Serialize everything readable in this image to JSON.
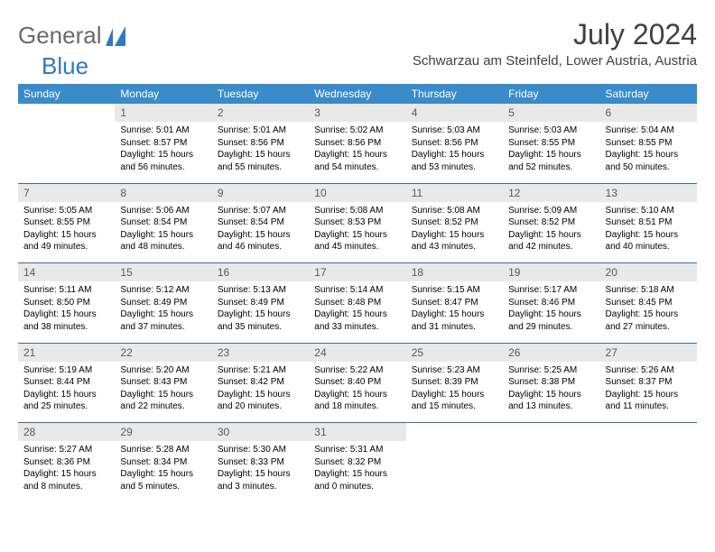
{
  "brand": {
    "part1": "General",
    "part2": "Blue"
  },
  "title": "July 2024",
  "location": "Schwarzau am Steinfeld, Lower Austria, Austria",
  "colors": {
    "header_bg": "#3a8bc9",
    "header_text": "#ffffff",
    "daynum_bg": "#e9e9e9",
    "daynum_text": "#5a5a5a",
    "week_border": "#2e6fa5",
    "page_bg": "#ffffff",
    "brand_gray": "#6a6a6a",
    "brand_blue": "#2f7ac0",
    "title_color": "#404040"
  },
  "dayHeaders": [
    "Sunday",
    "Monday",
    "Tuesday",
    "Wednesday",
    "Thursday",
    "Friday",
    "Saturday"
  ],
  "weeks": [
    [
      null,
      {
        "num": "1",
        "sunrise": "5:01 AM",
        "sunset": "8:57 PM",
        "daylight": "15 hours and 56 minutes."
      },
      {
        "num": "2",
        "sunrise": "5:01 AM",
        "sunset": "8:56 PM",
        "daylight": "15 hours and 55 minutes."
      },
      {
        "num": "3",
        "sunrise": "5:02 AM",
        "sunset": "8:56 PM",
        "daylight": "15 hours and 54 minutes."
      },
      {
        "num": "4",
        "sunrise": "5:03 AM",
        "sunset": "8:56 PM",
        "daylight": "15 hours and 53 minutes."
      },
      {
        "num": "5",
        "sunrise": "5:03 AM",
        "sunset": "8:55 PM",
        "daylight": "15 hours and 52 minutes."
      },
      {
        "num": "6",
        "sunrise": "5:04 AM",
        "sunset": "8:55 PM",
        "daylight": "15 hours and 50 minutes."
      }
    ],
    [
      {
        "num": "7",
        "sunrise": "5:05 AM",
        "sunset": "8:55 PM",
        "daylight": "15 hours and 49 minutes."
      },
      {
        "num": "8",
        "sunrise": "5:06 AM",
        "sunset": "8:54 PM",
        "daylight": "15 hours and 48 minutes."
      },
      {
        "num": "9",
        "sunrise": "5:07 AM",
        "sunset": "8:54 PM",
        "daylight": "15 hours and 46 minutes."
      },
      {
        "num": "10",
        "sunrise": "5:08 AM",
        "sunset": "8:53 PM",
        "daylight": "15 hours and 45 minutes."
      },
      {
        "num": "11",
        "sunrise": "5:08 AM",
        "sunset": "8:52 PM",
        "daylight": "15 hours and 43 minutes."
      },
      {
        "num": "12",
        "sunrise": "5:09 AM",
        "sunset": "8:52 PM",
        "daylight": "15 hours and 42 minutes."
      },
      {
        "num": "13",
        "sunrise": "5:10 AM",
        "sunset": "8:51 PM",
        "daylight": "15 hours and 40 minutes."
      }
    ],
    [
      {
        "num": "14",
        "sunrise": "5:11 AM",
        "sunset": "8:50 PM",
        "daylight": "15 hours and 38 minutes."
      },
      {
        "num": "15",
        "sunrise": "5:12 AM",
        "sunset": "8:49 PM",
        "daylight": "15 hours and 37 minutes."
      },
      {
        "num": "16",
        "sunrise": "5:13 AM",
        "sunset": "8:49 PM",
        "daylight": "15 hours and 35 minutes."
      },
      {
        "num": "17",
        "sunrise": "5:14 AM",
        "sunset": "8:48 PM",
        "daylight": "15 hours and 33 minutes."
      },
      {
        "num": "18",
        "sunrise": "5:15 AM",
        "sunset": "8:47 PM",
        "daylight": "15 hours and 31 minutes."
      },
      {
        "num": "19",
        "sunrise": "5:17 AM",
        "sunset": "8:46 PM",
        "daylight": "15 hours and 29 minutes."
      },
      {
        "num": "20",
        "sunrise": "5:18 AM",
        "sunset": "8:45 PM",
        "daylight": "15 hours and 27 minutes."
      }
    ],
    [
      {
        "num": "21",
        "sunrise": "5:19 AM",
        "sunset": "8:44 PM",
        "daylight": "15 hours and 25 minutes."
      },
      {
        "num": "22",
        "sunrise": "5:20 AM",
        "sunset": "8:43 PM",
        "daylight": "15 hours and 22 minutes."
      },
      {
        "num": "23",
        "sunrise": "5:21 AM",
        "sunset": "8:42 PM",
        "daylight": "15 hours and 20 minutes."
      },
      {
        "num": "24",
        "sunrise": "5:22 AM",
        "sunset": "8:40 PM",
        "daylight": "15 hours and 18 minutes."
      },
      {
        "num": "25",
        "sunrise": "5:23 AM",
        "sunset": "8:39 PM",
        "daylight": "15 hours and 15 minutes."
      },
      {
        "num": "26",
        "sunrise": "5:25 AM",
        "sunset": "8:38 PM",
        "daylight": "15 hours and 13 minutes."
      },
      {
        "num": "27",
        "sunrise": "5:26 AM",
        "sunset": "8:37 PM",
        "daylight": "15 hours and 11 minutes."
      }
    ],
    [
      {
        "num": "28",
        "sunrise": "5:27 AM",
        "sunset": "8:36 PM",
        "daylight": "15 hours and 8 minutes."
      },
      {
        "num": "29",
        "sunrise": "5:28 AM",
        "sunset": "8:34 PM",
        "daylight": "15 hours and 5 minutes."
      },
      {
        "num": "30",
        "sunrise": "5:30 AM",
        "sunset": "8:33 PM",
        "daylight": "15 hours and 3 minutes."
      },
      {
        "num": "31",
        "sunrise": "5:31 AM",
        "sunset": "8:32 PM",
        "daylight": "15 hours and 0 minutes."
      },
      null,
      null,
      null
    ]
  ],
  "labels": {
    "sunrise": "Sunrise: ",
    "sunset": "Sunset: ",
    "daylight": "Daylight: "
  }
}
